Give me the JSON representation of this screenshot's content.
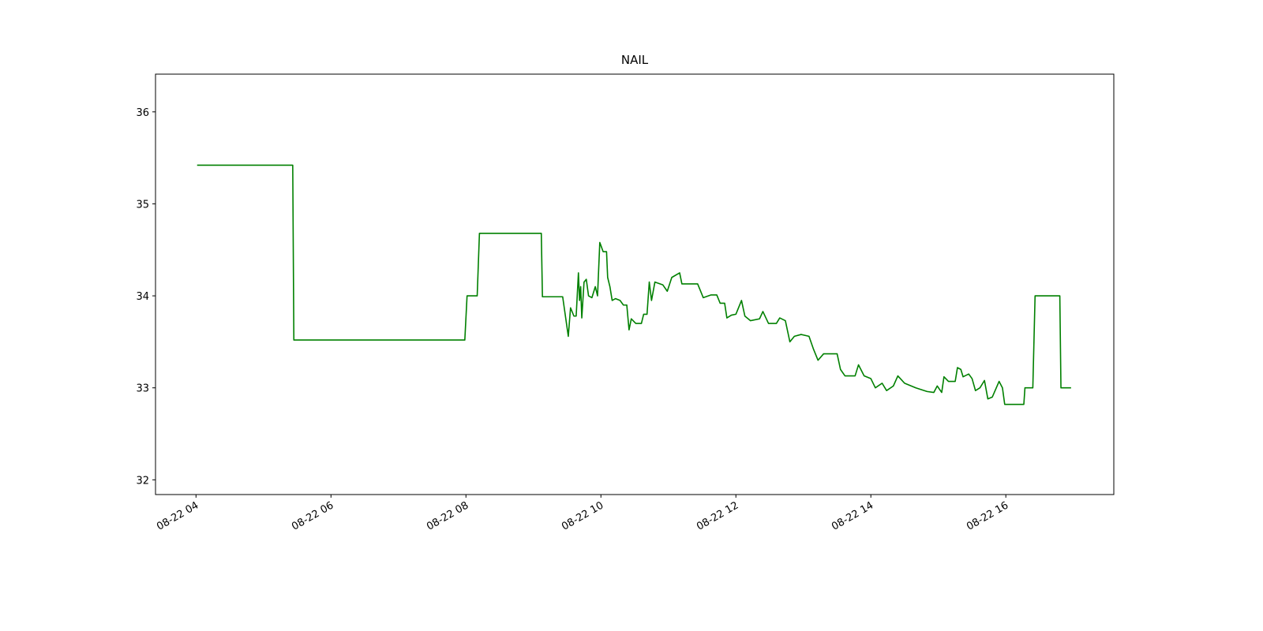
{
  "chart_data": {
    "type": "line",
    "title": "NAIL",
    "color": "#008000",
    "x": [
      "08-22 04:01",
      "08-22 05:26",
      "08-22 05:27",
      "08-22 07:59",
      "08-22 08:01",
      "08-22 08:10",
      "08-22 08:12",
      "08-22 09:07",
      "08-22 09:08",
      "08-22 09:26",
      "08-22 09:31",
      "08-22 09:33",
      "08-22 09:36",
      "08-22 09:38",
      "08-22 09:40",
      "08-22 09:41",
      "08-22 09:42",
      "08-22 09:43",
      "08-22 09:45",
      "08-22 09:47",
      "08-22 09:49",
      "08-22 09:52",
      "08-22 09:55",
      "08-22 09:57",
      "08-22 09:59",
      "08-22 10:02",
      "08-22 10:05",
      "08-22 10:06",
      "08-22 10:08",
      "08-22 10:10",
      "08-22 10:13",
      "08-22 10:17",
      "08-22 10:20",
      "08-22 10:23",
      "08-22 10:25",
      "08-22 10:27",
      "08-22 10:31",
      "08-22 10:36",
      "08-22 10:38",
      "08-22 10:41",
      "08-22 10:43",
      "08-22 10:45",
      "08-22 10:48",
      "08-22 10:55",
      "08-22 10:59",
      "08-22 11:03",
      "08-22 11:10",
      "08-22 11:12",
      "08-22 11:26",
      "08-22 11:31",
      "08-22 11:38",
      "08-22 11:43",
      "08-22 11:46",
      "08-22 11:50",
      "08-22 11:52",
      "08-22 11:56",
      "08-22 12:00",
      "08-22 12:05",
      "08-22 12:08",
      "08-22 12:13",
      "08-22 12:21",
      "08-22 12:24",
      "08-22 12:29",
      "08-22 12:36",
      "08-22 12:39",
      "08-22 12:44",
      "08-22 12:48",
      "08-22 12:52",
      "08-22 12:58",
      "08-22 13:05",
      "08-22 13:09",
      "08-22 13:13",
      "08-22 13:18",
      "08-22 13:30",
      "08-22 13:33",
      "08-22 13:37",
      "08-22 13:46",
      "08-22 13:49",
      "08-22 13:54",
      "08-22 14:00",
      "08-22 14:04",
      "08-22 14:10",
      "08-22 14:14",
      "08-22 14:20",
      "08-22 14:24",
      "08-22 14:30",
      "08-22 14:40",
      "08-22 14:50",
      "08-22 14:56",
      "08-22 14:59",
      "08-22 15:03",
      "08-22 15:05",
      "08-22 15:09",
      "08-22 15:15",
      "08-22 15:17",
      "08-22 15:20",
      "08-22 15:22",
      "08-22 15:27",
      "08-22 15:30",
      "08-22 15:33",
      "08-22 15:37",
      "08-22 15:41",
      "08-22 15:44",
      "08-22 15:48",
      "08-22 15:54",
      "08-22 15:57",
      "08-22 15:59",
      "08-22 16:16",
      "08-22 16:17",
      "08-22 16:24",
      "08-22 16:26",
      "08-22 16:48",
      "08-22 16:49",
      "08-22 16:58"
    ],
    "values": [
      35.42,
      35.42,
      33.52,
      33.52,
      34.0,
      34.0,
      34.68,
      34.68,
      33.99,
      33.99,
      33.56,
      33.87,
      33.78,
      33.78,
      34.25,
      33.95,
      34.1,
      33.76,
      34.15,
      34.18,
      34.0,
      33.98,
      34.1,
      34.0,
      34.58,
      34.48,
      34.48,
      34.2,
      34.1,
      33.95,
      33.97,
      33.95,
      33.9,
      33.9,
      33.63,
      33.75,
      33.7,
      33.7,
      33.8,
      33.8,
      34.15,
      33.95,
      34.15,
      34.12,
      34.05,
      34.2,
      34.25,
      34.13,
      34.13,
      33.98,
      34.01,
      34.01,
      33.92,
      33.92,
      33.76,
      33.79,
      33.8,
      33.95,
      33.78,
      33.73,
      33.75,
      33.83,
      33.7,
      33.7,
      33.76,
      33.73,
      33.5,
      33.56,
      33.58,
      33.56,
      33.42,
      33.3,
      33.37,
      33.37,
      33.2,
      33.13,
      33.13,
      33.25,
      33.13,
      33.1,
      33.0,
      33.05,
      32.97,
      33.02,
      33.13,
      33.05,
      33.0,
      32.96,
      32.95,
      33.02,
      32.95,
      33.12,
      33.07,
      33.07,
      33.22,
      33.2,
      33.12,
      33.15,
      33.1,
      32.97,
      33.0,
      33.08,
      32.88,
      32.9,
      33.07,
      33.0,
      32.82,
      32.82,
      33.0,
      33.0,
      34.0,
      34.0,
      33.0,
      33.0
    ],
    "xlim": [
      "08-22 03:24",
      "08-22 17:36"
    ],
    "xticks": [
      {
        "value": "08-22 04:00",
        "label": "08-22 04"
      },
      {
        "value": "08-22 06:00",
        "label": "08-22 06"
      },
      {
        "value": "08-22 08:00",
        "label": "08-22 08"
      },
      {
        "value": "08-22 10:00",
        "label": "08-22 10"
      },
      {
        "value": "08-22 12:00",
        "label": "08-22 12"
      },
      {
        "value": "08-22 14:00",
        "label": "08-22 14"
      },
      {
        "value": "08-22 16:00",
        "label": "08-22 16"
      }
    ],
    "ylim": [
      31.84,
      36.41
    ],
    "yticks": [
      32,
      33,
      34,
      35,
      36
    ],
    "grid": false
  }
}
